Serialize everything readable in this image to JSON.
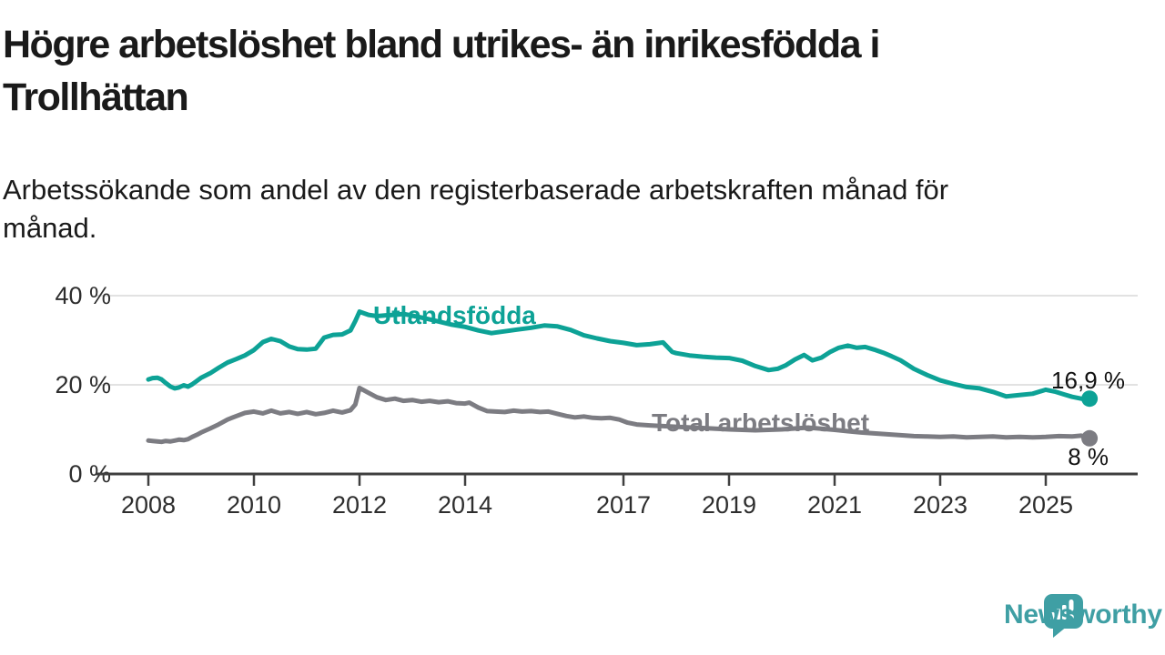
{
  "header": {
    "title_lines": [
      "Högre arbetslöshet bland utrikes- än inrikesfödda i",
      "Trollhättan"
    ],
    "subtitle_lines": [
      "Arbetssökande som andel av den registerbaserade arbetskraften månad för",
      "månad."
    ]
  },
  "chart_data": {
    "type": "line",
    "title": "Högre arbetslöshet bland utrikes- än inrikesfödda i Trollhättan",
    "subtitle": "Arbetssökande som andel av den registerbaserade arbetskraften månad för månad.",
    "xlabel": "",
    "ylabel": "",
    "unit": "%",
    "grid": "horizontal",
    "xlim": [
      2007.0,
      2026.8
    ],
    "ylim": [
      0,
      44
    ],
    "x_ticks": [
      {
        "year": 2008,
        "label": "2008"
      },
      {
        "year": 2010,
        "label": "2010"
      },
      {
        "year": 2012,
        "label": "2012"
      },
      {
        "year": 2014,
        "label": "2014"
      },
      {
        "year": 2017,
        "label": "2017"
      },
      {
        "year": 2019,
        "label": "2019"
      },
      {
        "year": 2021,
        "label": "2021"
      },
      {
        "year": 2023,
        "label": "2023"
      },
      {
        "year": 2025,
        "label": "2025"
      }
    ],
    "y_ticks": [
      {
        "value": 0,
        "label": "0 %"
      },
      {
        "value": 20,
        "label": "20 %"
      },
      {
        "value": 40,
        "label": "40 %"
      }
    ],
    "series": [
      {
        "name": "Utlandsfödda",
        "color": "#0da296",
        "end_label": "16,9 %",
        "last_value": 16.9,
        "points": [
          [
            2008.0,
            21.2
          ],
          [
            2008.08,
            21.5
          ],
          [
            2008.17,
            21.6
          ],
          [
            2008.25,
            21.2
          ],
          [
            2008.33,
            20.4
          ],
          [
            2008.42,
            19.6
          ],
          [
            2008.5,
            19.2
          ],
          [
            2008.58,
            19.4
          ],
          [
            2008.67,
            19.9
          ],
          [
            2008.75,
            19.6
          ],
          [
            2008.83,
            20.1
          ],
          [
            2008.92,
            20.9
          ],
          [
            2009.0,
            21.6
          ],
          [
            2009.17,
            22.6
          ],
          [
            2009.33,
            23.8
          ],
          [
            2009.5,
            25.0
          ],
          [
            2009.67,
            25.8
          ],
          [
            2009.83,
            26.6
          ],
          [
            2010.0,
            27.8
          ],
          [
            2010.17,
            29.6
          ],
          [
            2010.33,
            30.3
          ],
          [
            2010.5,
            29.8
          ],
          [
            2010.67,
            28.6
          ],
          [
            2010.83,
            28.0
          ],
          [
            2011.0,
            27.9
          ],
          [
            2011.17,
            28.1
          ],
          [
            2011.33,
            30.6
          ],
          [
            2011.5,
            31.2
          ],
          [
            2011.67,
            31.3
          ],
          [
            2011.83,
            32.2
          ],
          [
            2011.92,
            34.3
          ],
          [
            2012.0,
            36.4
          ],
          [
            2012.17,
            35.7
          ],
          [
            2012.33,
            35.4
          ],
          [
            2012.5,
            35.6
          ],
          [
            2012.67,
            35.7
          ],
          [
            2012.83,
            35.9
          ],
          [
            2013.0,
            35.5
          ],
          [
            2013.25,
            34.9
          ],
          [
            2013.5,
            34.2
          ],
          [
            2013.75,
            33.5
          ],
          [
            2014.0,
            33.0
          ],
          [
            2014.25,
            32.2
          ],
          [
            2014.5,
            31.6
          ],
          [
            2014.75,
            32.0
          ],
          [
            2015.0,
            32.4
          ],
          [
            2015.25,
            32.8
          ],
          [
            2015.5,
            33.3
          ],
          [
            2015.75,
            33.1
          ],
          [
            2016.0,
            32.3
          ],
          [
            2016.25,
            31.1
          ],
          [
            2016.5,
            30.4
          ],
          [
            2016.75,
            29.8
          ],
          [
            2017.0,
            29.4
          ],
          [
            2017.25,
            28.9
          ],
          [
            2017.5,
            29.1
          ],
          [
            2017.75,
            29.5
          ],
          [
            2017.92,
            27.4
          ],
          [
            2018.0,
            27.1
          ],
          [
            2018.25,
            26.6
          ],
          [
            2018.5,
            26.3
          ],
          [
            2018.75,
            26.1
          ],
          [
            2019.0,
            26.0
          ],
          [
            2019.25,
            25.4
          ],
          [
            2019.5,
            24.2
          ],
          [
            2019.75,
            23.3
          ],
          [
            2019.92,
            23.6
          ],
          [
            2020.08,
            24.4
          ],
          [
            2020.25,
            25.7
          ],
          [
            2020.42,
            26.7
          ],
          [
            2020.58,
            25.5
          ],
          [
            2020.75,
            26.1
          ],
          [
            2020.92,
            27.4
          ],
          [
            2021.08,
            28.3
          ],
          [
            2021.25,
            28.8
          ],
          [
            2021.42,
            28.3
          ],
          [
            2021.58,
            28.5
          ],
          [
            2021.75,
            27.9
          ],
          [
            2021.92,
            27.2
          ],
          [
            2022.08,
            26.4
          ],
          [
            2022.25,
            25.5
          ],
          [
            2022.5,
            23.6
          ],
          [
            2022.75,
            22.2
          ],
          [
            2023.0,
            21.0
          ],
          [
            2023.25,
            20.2
          ],
          [
            2023.5,
            19.5
          ],
          [
            2023.75,
            19.2
          ],
          [
            2024.0,
            18.4
          ],
          [
            2024.25,
            17.4
          ],
          [
            2024.5,
            17.7
          ],
          [
            2024.75,
            18.0
          ],
          [
            2025.0,
            18.9
          ],
          [
            2025.17,
            18.5
          ],
          [
            2025.33,
            17.9
          ],
          [
            2025.5,
            17.3
          ],
          [
            2025.67,
            16.9
          ],
          [
            2025.83,
            16.9
          ]
        ]
      },
      {
        "name": "Total arbetslöshet",
        "color": "#7c7c82",
        "end_label": "8 %",
        "last_value": 8.0,
        "points": [
          [
            2008.0,
            7.5
          ],
          [
            2008.08,
            7.4
          ],
          [
            2008.17,
            7.3
          ],
          [
            2008.25,
            7.2
          ],
          [
            2008.33,
            7.4
          ],
          [
            2008.42,
            7.3
          ],
          [
            2008.5,
            7.5
          ],
          [
            2008.58,
            7.7
          ],
          [
            2008.67,
            7.6
          ],
          [
            2008.75,
            7.8
          ],
          [
            2008.83,
            8.3
          ],
          [
            2008.92,
            8.8
          ],
          [
            2009.0,
            9.3
          ],
          [
            2009.17,
            10.2
          ],
          [
            2009.33,
            11.1
          ],
          [
            2009.5,
            12.2
          ],
          [
            2009.67,
            13.0
          ],
          [
            2009.83,
            13.7
          ],
          [
            2010.0,
            14.0
          ],
          [
            2010.17,
            13.6
          ],
          [
            2010.33,
            14.2
          ],
          [
            2010.5,
            13.6
          ],
          [
            2010.67,
            13.9
          ],
          [
            2010.83,
            13.5
          ],
          [
            2011.0,
            13.9
          ],
          [
            2011.17,
            13.4
          ],
          [
            2011.33,
            13.7
          ],
          [
            2011.5,
            14.2
          ],
          [
            2011.67,
            13.8
          ],
          [
            2011.83,
            14.3
          ],
          [
            2011.92,
            15.6
          ],
          [
            2012.0,
            19.3
          ],
          [
            2012.17,
            18.2
          ],
          [
            2012.33,
            17.2
          ],
          [
            2012.5,
            16.6
          ],
          [
            2012.67,
            16.9
          ],
          [
            2012.83,
            16.4
          ],
          [
            2013.0,
            16.6
          ],
          [
            2013.17,
            16.2
          ],
          [
            2013.33,
            16.4
          ],
          [
            2013.5,
            16.1
          ],
          [
            2013.67,
            16.3
          ],
          [
            2013.83,
            15.9
          ],
          [
            2014.0,
            15.8
          ],
          [
            2014.08,
            16.0
          ],
          [
            2014.25,
            14.9
          ],
          [
            2014.42,
            14.1
          ],
          [
            2014.58,
            14.0
          ],
          [
            2014.75,
            13.9
          ],
          [
            2014.92,
            14.2
          ],
          [
            2015.08,
            14.0
          ],
          [
            2015.25,
            14.1
          ],
          [
            2015.42,
            13.9
          ],
          [
            2015.58,
            14.0
          ],
          [
            2015.75,
            13.5
          ],
          [
            2015.92,
            13.0
          ],
          [
            2016.08,
            12.7
          ],
          [
            2016.25,
            12.9
          ],
          [
            2016.42,
            12.6
          ],
          [
            2016.58,
            12.5
          ],
          [
            2016.75,
            12.6
          ],
          [
            2016.92,
            12.2
          ],
          [
            2017.08,
            11.5
          ],
          [
            2017.25,
            11.1
          ],
          [
            2017.5,
            10.9
          ],
          [
            2018.0,
            10.6
          ],
          [
            2018.5,
            10.3
          ],
          [
            2019.0,
            10.0
          ],
          [
            2019.5,
            9.8
          ],
          [
            2020.0,
            10.0
          ],
          [
            2020.5,
            10.4
          ],
          [
            2021.0,
            9.9
          ],
          [
            2021.25,
            9.6
          ],
          [
            2021.5,
            9.3
          ],
          [
            2021.75,
            9.1
          ],
          [
            2022.0,
            8.9
          ],
          [
            2022.25,
            8.7
          ],
          [
            2022.5,
            8.5
          ],
          [
            2022.75,
            8.4
          ],
          [
            2023.0,
            8.3
          ],
          [
            2023.25,
            8.4
          ],
          [
            2023.5,
            8.2
          ],
          [
            2023.75,
            8.3
          ],
          [
            2024.0,
            8.4
          ],
          [
            2024.25,
            8.2
          ],
          [
            2024.5,
            8.3
          ],
          [
            2024.75,
            8.2
          ],
          [
            2025.0,
            8.3
          ],
          [
            2025.25,
            8.5
          ],
          [
            2025.5,
            8.4
          ],
          [
            2025.67,
            8.6
          ],
          [
            2025.83,
            8.0
          ]
        ]
      }
    ]
  },
  "branding": {
    "logo_text": "Newsworthy",
    "logo_color": "#3f9fa4"
  }
}
